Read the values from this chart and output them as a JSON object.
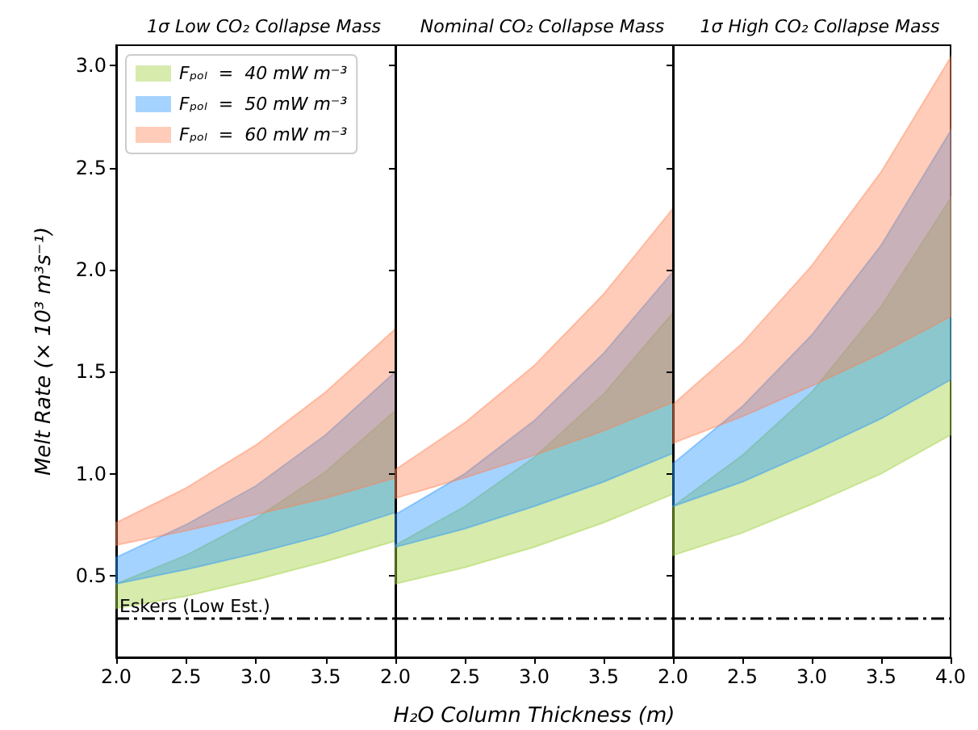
{
  "chart_data": [
    {
      "type": "area",
      "title": "1σ Low CO₂ Collapse Mass",
      "ylabel": "Melt Rate (× 10³ m³s⁻¹)",
      "x": [
        2,
        2.5,
        3,
        3.5,
        4
      ],
      "xlim": [
        2,
        4
      ],
      "xticks": [
        {
          "value": 2,
          "label": "2.0"
        },
        {
          "value": 2.5,
          "label": "2.5"
        },
        {
          "value": 3,
          "label": "3.0"
        },
        {
          "value": 3.5,
          "label": "3.5"
        },
        {
          "value": 4,
          "label": null
        }
      ],
      "ylim": [
        0.1,
        3.1
      ],
      "yticks": [
        0.5,
        {
          "value": 1,
          "label": "1.0"
        },
        1.5,
        {
          "value": 2,
          "label": "2.0"
        },
        2.5,
        {
          "value": 3,
          "label": "3.0"
        }
      ],
      "grid": false,
      "legend": "top left",
      "series": [
        {
          "name": "Fₚₒₗ  =  40 mW m⁻³",
          "color": "#9acd32",
          "values": [
            null,
            null,
            null,
            null,
            null
          ],
          "lower": [
            0.34,
            0.4,
            0.48,
            0.57,
            0.67
          ],
          "upper": [
            0.46,
            0.6,
            0.78,
            1.01,
            1.31
          ]
        },
        {
          "name": "Fₚₒₗ  =  50 mW m⁻³",
          "color": "#1e90ff",
          "values": [
            null,
            null,
            null,
            null,
            null
          ],
          "lower": [
            0.46,
            0.53,
            0.61,
            0.7,
            0.81
          ],
          "upper": [
            0.59,
            0.75,
            0.94,
            1.19,
            1.5
          ]
        },
        {
          "name": "Fₚₒₗ  =  60 mW m⁻³",
          "color": "#ff7f50",
          "values": [
            null,
            null,
            null,
            null,
            null
          ],
          "lower": [
            0.65,
            0.72,
            0.8,
            0.88,
            0.98
          ],
          "upper": [
            0.76,
            0.93,
            1.14,
            1.4,
            1.71
          ]
        }
      ],
      "ref_lines": [
        {
          "axis": "y",
          "value": 0.29,
          "label": "Eskers (Low Est.)",
          "color": "#000000",
          "line_style": "dashdot"
        }
      ]
    },
    {
      "type": "area",
      "title": "Nominal CO₂ Collapse Mass",
      "xlabel": "H₂O Column Thickness (m)",
      "x": [
        2,
        2.5,
        3,
        3.5,
        4
      ],
      "xlim": [
        2,
        4
      ],
      "xticks": [
        {
          "value": 2,
          "label": "2.0"
        },
        {
          "value": 2.5,
          "label": "2.5"
        },
        {
          "value": 3,
          "label": "3.0"
        },
        {
          "value": 3.5,
          "label": "3.5"
        },
        {
          "value": 4,
          "label": null
        }
      ],
      "ylim": [
        0.1,
        3.1
      ],
      "yticks": [
        0.5,
        1,
        1.5,
        2,
        2.5,
        3
      ],
      "grid": false,
      "tick_labels": "x",
      "series": [
        {
          "color": "#9acd32",
          "values": [
            null,
            null,
            null,
            null,
            null
          ],
          "lower": [
            0.46,
            0.54,
            0.64,
            0.76,
            0.9
          ],
          "upper": [
            0.65,
            0.84,
            1.08,
            1.39,
            1.79
          ]
        },
        {
          "color": "#1e90ff",
          "values": [
            null,
            null,
            null,
            null,
            null
          ],
          "lower": [
            0.64,
            0.73,
            0.84,
            0.96,
            1.1
          ],
          "upper": [
            0.8,
            1.0,
            1.26,
            1.59,
            1.99
          ]
        },
        {
          "color": "#ff7f50",
          "values": [
            null,
            null,
            null,
            null,
            null
          ],
          "lower": [
            0.88,
            0.98,
            1.09,
            1.21,
            1.35
          ],
          "upper": [
            1.02,
            1.25,
            1.53,
            1.88,
            2.3
          ]
        }
      ],
      "ref_lines": [
        {
          "axis": "y",
          "value": 0.29,
          "label": null,
          "color": "#000000",
          "line_style": "dashdot"
        }
      ]
    },
    {
      "type": "area",
      "title": "1σ High CO₂ Collapse Mass",
      "x": [
        2,
        2.5,
        3,
        3.5,
        4
      ],
      "xlim": [
        2,
        4
      ],
      "xticks": [
        {
          "value": 2,
          "label": "2.0"
        },
        {
          "value": 2.5,
          "label": "2.5"
        },
        {
          "value": 3,
          "label": "3.0"
        },
        {
          "value": 3.5,
          "label": "3.5"
        },
        {
          "value": 4,
          "label": "4.0"
        }
      ],
      "ylim": [
        0.1,
        3.1
      ],
      "yticks": [
        0.5,
        1,
        1.5,
        2,
        2.5,
        3
      ],
      "grid": false,
      "tick_labels": "x",
      "series": [
        {
          "color": "#9acd32",
          "values": [
            null,
            null,
            null,
            null,
            null
          ],
          "lower": [
            0.6,
            0.71,
            0.85,
            1.0,
            1.19
          ],
          "upper": [
            0.84,
            1.09,
            1.4,
            1.82,
            2.35
          ]
        },
        {
          "color": "#1e90ff",
          "values": [
            null,
            null,
            null,
            null,
            null
          ],
          "lower": [
            0.84,
            0.96,
            1.11,
            1.27,
            1.46
          ],
          "upper": [
            1.05,
            1.33,
            1.68,
            2.12,
            2.68
          ]
        },
        {
          "color": "#ff7f50",
          "values": [
            null,
            null,
            null,
            null,
            null
          ],
          "lower": [
            1.15,
            1.28,
            1.43,
            1.59,
            1.77
          ],
          "upper": [
            1.34,
            1.64,
            2.02,
            2.48,
            3.04
          ]
        }
      ],
      "ref_lines": [
        {
          "axis": "y",
          "value": 0.29,
          "label": null,
          "color": "#000000",
          "line_style": "dashdot"
        }
      ]
    }
  ]
}
